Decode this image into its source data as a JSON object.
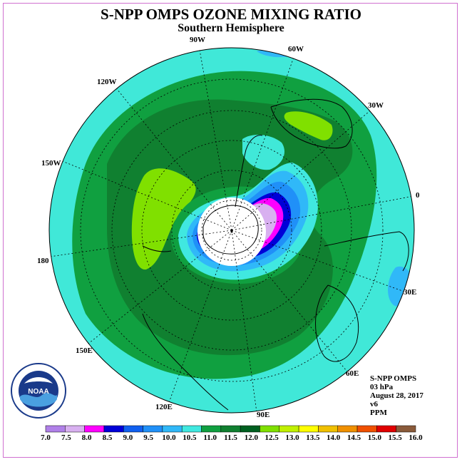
{
  "title": "S-NPP OMPS OZONE MIXING RATIO",
  "subtitle": "Southern Hemisphere",
  "longitude_labels": {
    "lon_90w": "90W",
    "lon_60w": "60W",
    "lon_30w": "30W",
    "lon_0": "0",
    "lon_30e": "30E",
    "lon_60e": "60E",
    "lon_90e": "90E",
    "lon_120e": "120E",
    "lon_150e": "150E",
    "lon_180": "180",
    "lon_150w": "150W",
    "lon_120w": "120W"
  },
  "info": {
    "instrument": "S-NPP OMPS",
    "level": "03 hPa",
    "date": "August 28, 2017",
    "version": "v6",
    "units": "PPM"
  },
  "logo_text": "NOAA",
  "colorbar": {
    "ticks": [
      "7.0",
      "7.5",
      "8.0",
      "8.5",
      "9.0",
      "9.5",
      "10.0",
      "10.5",
      "11.0",
      "11.5",
      "12.0",
      "12.5",
      "13.0",
      "13.5",
      "14.0",
      "14.5",
      "15.0",
      "15.5",
      "16.0"
    ],
    "colors": [
      "#b080e8",
      "#d8b0f0",
      "#ff00ff",
      "#0000d8",
      "#1060f0",
      "#2090f8",
      "#30b8f8",
      "#40e8e0",
      "#10a040",
      "#108030",
      "#006020",
      "#80e000",
      "#c0f000",
      "#ffff00",
      "#f0c000",
      "#f09000",
      "#f05000",
      "#e00000",
      "#8a5a3a"
    ]
  },
  "colors": {
    "background_field": "#40e8d8",
    "pole_hole": "#ffffff"
  }
}
